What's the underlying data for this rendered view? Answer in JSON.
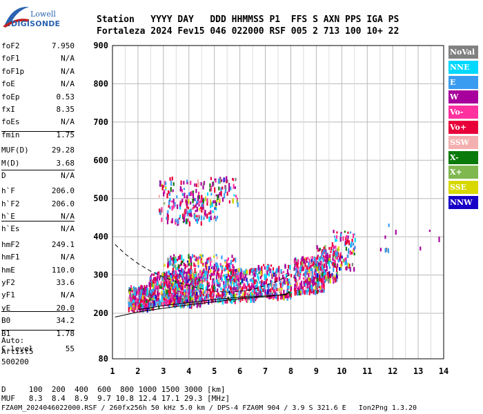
{
  "logo": {
    "line1": "Lowell",
    "line2": "DIGISONDE"
  },
  "header": {
    "labels": "Station   YYYY DAY   DDD HHMMSS P1  FFS S AXN PPS IGA PS",
    "values": "Fortaleza 2024 Fev15 046 022000 RSF 005 2 713 100 10+ 22"
  },
  "params": [
    {
      "name": "foF2",
      "value": "7.950"
    },
    {
      "name": "foF1",
      "value": "N/A"
    },
    {
      "name": "foF1p",
      "value": "N/A"
    },
    {
      "name": "foE",
      "value": "N/A"
    },
    {
      "name": "foEp",
      "value": "0.53"
    },
    {
      "name": "fxI",
      "value": "8.35"
    },
    {
      "name": "foEs",
      "value": "N/A"
    },
    {
      "name": "fmin",
      "value": "1.75"
    },
    {
      "name": "MUF(D)",
      "value": "29.28"
    },
    {
      "name": "M(D)",
      "value": "3.68"
    },
    {
      "name": "D",
      "value": "N/A"
    },
    {
      "name": "h`F",
      "value": "206.0"
    },
    {
      "name": "h`F2",
      "value": "206.0"
    },
    {
      "name": "h`E",
      "value": "N/A"
    },
    {
      "name": "h`Es",
      "value": "N/A"
    },
    {
      "name": "hmF2",
      "value": "249.1"
    },
    {
      "name": "hmF1",
      "value": "N/A"
    },
    {
      "name": "hmE",
      "value": "110.0"
    },
    {
      "name": "yF2",
      "value": "33.6"
    },
    {
      "name": "yF1",
      "value": "N/A"
    },
    {
      "name": "yE",
      "value": "20.0"
    },
    {
      "name": "B0",
      "value": "34.2"
    },
    {
      "name": "B1",
      "value": "1.78"
    },
    {
      "name": "C-level",
      "value": "55"
    }
  ],
  "auto": [
    "Auto:",
    "Artist5",
    "500200"
  ],
  "legend": [
    {
      "label": "NoVal",
      "color": "#808080"
    },
    {
      "label": "NNE",
      "color": "#00d8ff"
    },
    {
      "label": "E",
      "color": "#3a9cf0"
    },
    {
      "label": "W",
      "color": "#a8009c"
    },
    {
      "label": "Vo-",
      "color": "#ff30a0"
    },
    {
      "label": "Vo+",
      "color": "#e8003a"
    },
    {
      "label": "SSW",
      "color": "#f4b0b0"
    },
    {
      "label": "X-",
      "color": "#0a7a0a"
    },
    {
      "label": "X+",
      "color": "#80b850"
    },
    {
      "label": "SSE",
      "color": "#d8d800"
    },
    {
      "label": "NNW",
      "color": "#1800c8"
    }
  ],
  "footer": {
    "d_row": "D     100  200  400  600  800 1000 1500 3000 [km]",
    "muf_row": "MUF   8.3  8.4  8.9  9.7 10.8 12.4 17.1 29.3 [MHz]",
    "file_line": "FZA0M_2024046022000.RSF / 260fx256h 50 kHz 5.0 km / DPS-4 FZA0M 904 / 3.9 S 321.6 E   Ion2Png 1.3.20"
  },
  "chart_data": {
    "type": "scatter",
    "x_ticks": [
      "1",
      "2",
      "3",
      "4",
      "5",
      "6",
      "7",
      "8",
      "9",
      "10",
      "11",
      "12",
      "13",
      "14"
    ],
    "y_ticks": [
      "80",
      "200",
      "300",
      "400",
      "500",
      "600",
      "700",
      "800",
      "900"
    ],
    "xlim": [
      1,
      14
    ],
    "ylim": [
      80,
      900
    ],
    "grid": true,
    "traces": [
      {
        "name": "profile_solid",
        "x": [
          1.1,
          2,
          3,
          4,
          5,
          6,
          7,
          7.8,
          7.95,
          7.8,
          6,
          5,
          4,
          3,
          2.3,
          2
        ],
        "y": [
          190,
          203,
          213,
          222,
          230,
          238,
          243,
          250,
          255,
          248,
          242,
          236,
          228,
          220,
          212,
          210
        ]
      },
      {
        "name": "profile_dashed",
        "x": [
          1.1,
          1.5,
          2,
          2.5,
          3,
          3.5,
          4,
          4.5,
          5,
          5.5,
          6,
          6.5,
          7,
          7.5,
          7.95
        ],
        "y": [
          380,
          355,
          330,
          310,
          295,
          282,
          272,
          264,
          258,
          255,
          257,
          262,
          272,
          285,
          300
        ]
      }
    ],
    "echo_clusters": [
      {
        "x": [
          1.6,
          2.6
        ],
        "y": [
          215,
          275
        ],
        "n": 260
      },
      {
        "x": [
          2.4,
          4.5
        ],
        "y": [
          225,
          310
        ],
        "n": 520
      },
      {
        "x": [
          3.0,
          5.8
        ],
        "y": [
          235,
          355
        ],
        "n": 600
      },
      {
        "x": [
          5.7,
          6.6
        ],
        "y": [
          240,
          320
        ],
        "n": 180
      },
      {
        "x": [
          6.6,
          8.0
        ],
        "y": [
          245,
          330
        ],
        "n": 240
      },
      {
        "x": [
          8.1,
          9.3
        ],
        "y": [
          260,
          350
        ],
        "n": 300
      },
      {
        "x": [
          9.0,
          9.8
        ],
        "y": [
          290,
          380
        ],
        "n": 140
      },
      {
        "x": [
          9.6,
          10.5
        ],
        "y": [
          320,
          420
        ],
        "n": 90
      },
      {
        "x": [
          2.8,
          4.6
        ],
        "y": [
          440,
          560
        ],
        "n": 130
      },
      {
        "x": [
          3.7,
          5.2
        ],
        "y": [
          450,
          520
        ],
        "n": 80
      },
      {
        "x": [
          4.8,
          5.9
        ],
        "y": [
          490,
          560
        ],
        "n": 60
      },
      {
        "x": [
          10.8,
          13.8
        ],
        "y": [
          370,
          440
        ],
        "n": 10
      }
    ]
  }
}
